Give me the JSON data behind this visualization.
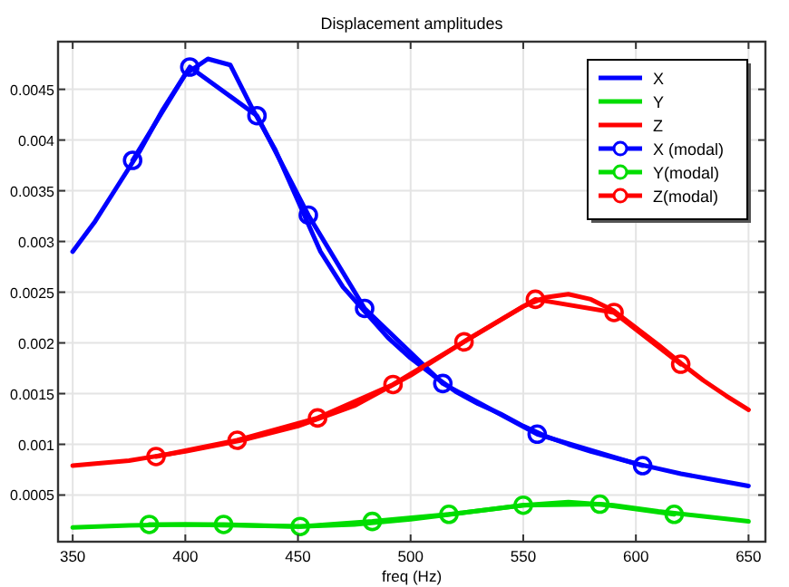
{
  "chart_data": {
    "type": "line",
    "title": "Displacement amplitudes",
    "xlabel": "freq (Hz)",
    "xlim": [
      343.5,
      657.5
    ],
    "xticks": [
      350,
      400,
      450,
      500,
      550,
      600,
      650
    ],
    "ylim": [
      4e-05,
      0.00497
    ],
    "yticks": [
      0.0005,
      0.001,
      0.0015,
      0.002,
      0.0025,
      0.003,
      0.0035,
      0.004,
      0.0045
    ],
    "grid": true,
    "legend": "top right",
    "marker": "none",
    "line_style": "solid",
    "series": [
      {
        "name": "X",
        "color": "#0000ff",
        "x": [
          350,
          360,
          370,
          380,
          390,
          400,
          410,
          420,
          430,
          440,
          450,
          460,
          470,
          480,
          490,
          500,
          510,
          520,
          530,
          540,
          550,
          560,
          570,
          580,
          590,
          600,
          610,
          620,
          630,
          640,
          650
        ],
        "values": [
          0.0029,
          0.0032,
          0.00355,
          0.0039,
          0.0043,
          0.00465,
          0.0048,
          0.00474,
          0.0043,
          0.0039,
          0.0034,
          0.0029,
          0.00255,
          0.0023,
          0.00205,
          0.00185,
          0.00168,
          0.00152,
          0.0014,
          0.0013,
          0.00118,
          0.00108,
          0.001,
          0.00093,
          0.00087,
          0.00081,
          0.00076,
          0.00071,
          0.00067,
          0.00063,
          0.00059
        ]
      },
      {
        "name": "Y",
        "color": "#00dd00",
        "x": [
          350,
          375,
          400,
          425,
          450,
          475,
          500,
          525,
          550,
          570,
          590,
          610,
          630,
          650
        ],
        "values": [
          0.00018,
          0.0002,
          0.00021,
          0.0002,
          0.00019,
          0.00021,
          0.00026,
          0.00033,
          0.0004,
          0.00043,
          0.0004,
          0.00034,
          0.00029,
          0.00024
        ]
      },
      {
        "name": "Z",
        "color": "#ff0000",
        "x": [
          350,
          375,
          400,
          425,
          450,
          475,
          500,
          525,
          550,
          560,
          570,
          580,
          590,
          600,
          610,
          620,
          630,
          640,
          650
        ],
        "values": [
          0.00079,
          0.00084,
          0.00093,
          0.00104,
          0.00118,
          0.00138,
          0.00168,
          0.00203,
          0.00236,
          0.00245,
          0.00248,
          0.00243,
          0.00232,
          0.00215,
          0.00198,
          0.0018,
          0.00163,
          0.00148,
          0.00134
        ]
      },
      {
        "name": "X (modal)",
        "color": "#0000ff",
        "marker": "circle",
        "x": [
          376.6,
          402,
          431.8,
          454.6,
          479.6,
          514.3,
          556.2,
          603
        ],
        "values": [
          0.0038,
          0.00472,
          0.00424,
          0.00326,
          0.00234,
          0.0016,
          0.0011,
          0.00079
        ]
      },
      {
        "name": "Y(modal)",
        "color": "#00dd00",
        "marker": "circle",
        "x": [
          384,
          417,
          451,
          483,
          517,
          550,
          584,
          617
        ],
        "values": [
          0.00021,
          0.00021,
          0.00019,
          0.00024,
          0.00031,
          0.0004,
          0.00041,
          0.00031
        ]
      },
      {
        "name": "Z(modal)",
        "color": "#ff0000",
        "marker": "circle",
        "x": [
          387,
          423,
          458.7,
          492.2,
          523.7,
          555.4,
          590.3,
          619.9
        ],
        "values": [
          0.00088,
          0.00104,
          0.00126,
          0.00159,
          0.00201,
          0.00243,
          0.0023,
          0.00179
        ]
      }
    ]
  }
}
